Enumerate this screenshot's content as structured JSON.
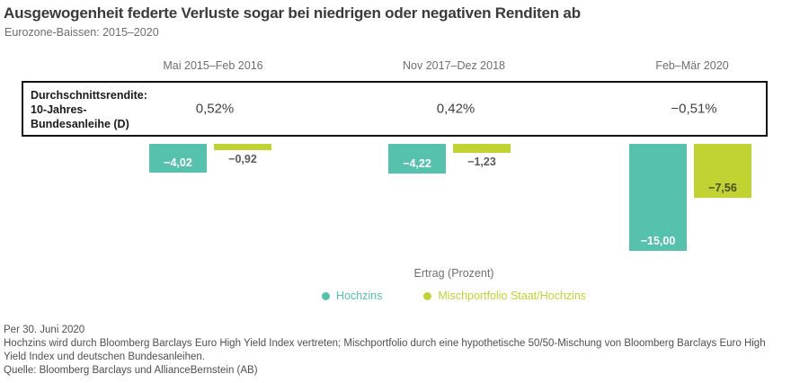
{
  "title": "Ausgewogenheit federte Verluste sogar bei niedrigen oder negativen Renditen ab",
  "subtitle": "Eurozone-Baissen: 2015–2020",
  "chart_data": {
    "type": "bar",
    "categories": [
      "Mai 2015–Feb 2016",
      "Nov 2017–Dez 2018",
      "Feb–Mär 2020"
    ],
    "series": [
      {
        "name": "Hochzins",
        "color": "#56C1AD",
        "label_color": "#FFFFFF",
        "values": [
          -4.02,
          -4.22,
          -15.0
        ],
        "value_labels": [
          "−4,02",
          "−4,22",
          "−15,00"
        ]
      },
      {
        "name": "Mischportfolio Staat/Hochzins",
        "color": "#C0D332",
        "label_color": "#4A4F14",
        "values": [
          -0.92,
          -1.23,
          -7.56
        ],
        "value_labels": [
          "−0,92",
          "−1,23",
          "−7,56"
        ]
      }
    ],
    "ylabel": "Ertrag (Prozent)",
    "ylim": [
      -15,
      0
    ],
    "grid": false,
    "legend_position": "bottom",
    "avg_yield_row": {
      "label": "Durchschnittsrendite: 10-Jahres-Bundesanleihe (D)",
      "values": [
        "0,52%",
        "0,42%",
        "−0,51%"
      ]
    }
  },
  "footnotes": {
    "as_of": "Per 30. Juni 2020",
    "note": "Hochzins wird durch Bloomberg Barclays Euro High Yield Index vertreten; Mischportfolio durch eine hypothetische 50/50-Mischung von Bloomberg Barclays Euro High Yield Index und deutschen Bundesanleihen.",
    "source": "Quelle: Bloomberg Barclays und AllianceBernstein (AB)"
  }
}
